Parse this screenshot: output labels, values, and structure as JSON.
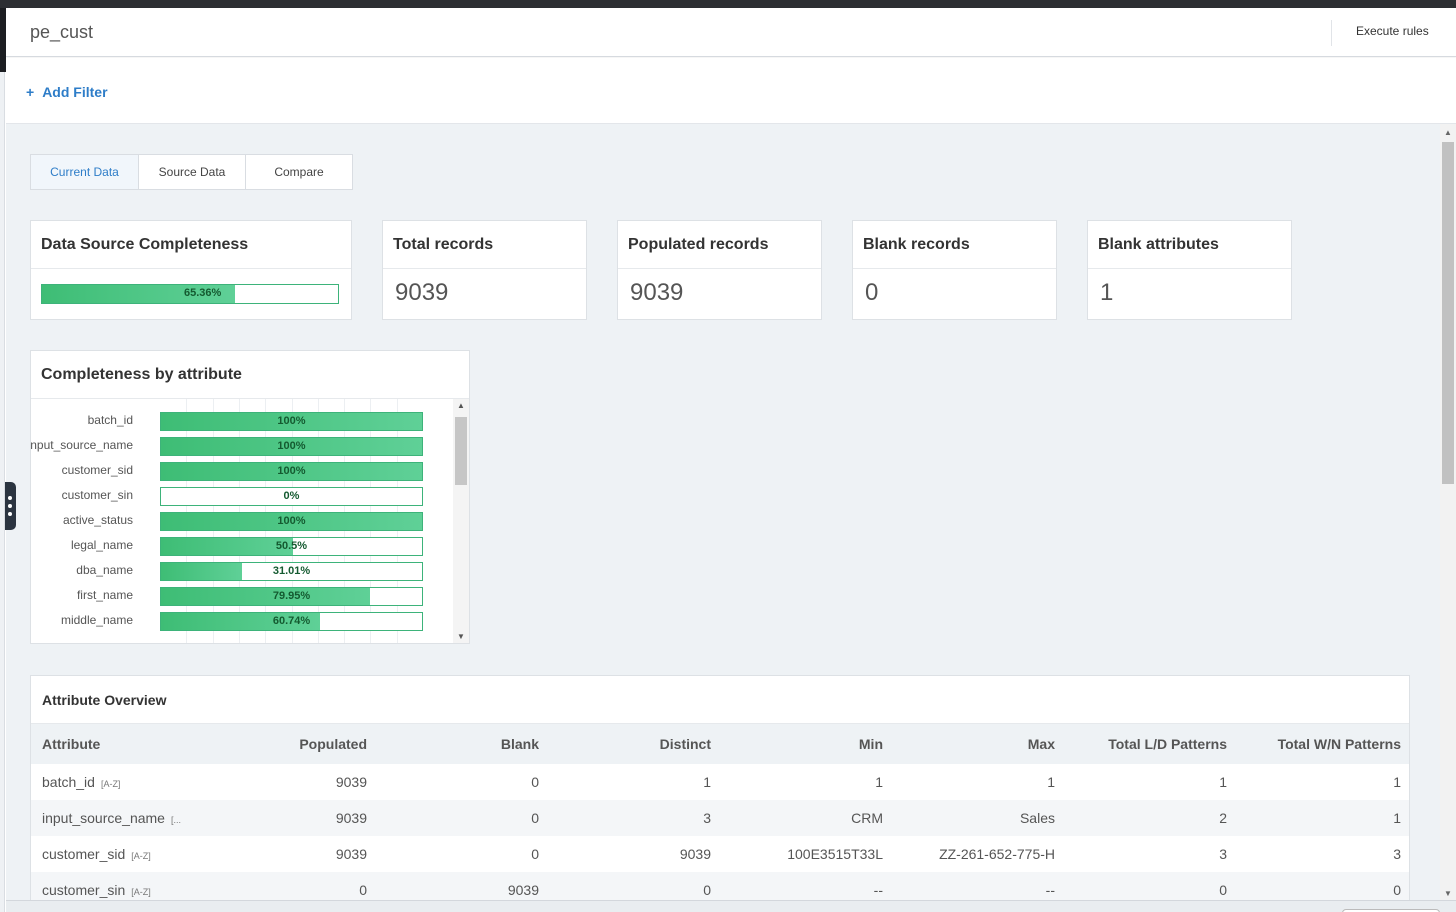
{
  "header": {
    "title": "pe_cust",
    "execute_label": "Execute rules"
  },
  "filter": {
    "add_label": "Add Filter",
    "plus": "+"
  },
  "tabs": [
    {
      "label": "Current Data",
      "active": true
    },
    {
      "label": "Source Data",
      "active": false
    },
    {
      "label": "Compare",
      "active": false
    }
  ],
  "completeness": {
    "title": "Data Source Completeness",
    "value_label": "65.36%",
    "value": 65.36
  },
  "stats": [
    {
      "title": "Total records",
      "value": "9039"
    },
    {
      "title": "Populated records",
      "value": "9039"
    },
    {
      "title": "Blank records",
      "value": "0"
    },
    {
      "title": "Blank attributes",
      "value": "1"
    }
  ],
  "by_attribute": {
    "title": "Completeness by attribute",
    "items": [
      {
        "name": "batch_id",
        "pct_label": "100%",
        "pct": 100
      },
      {
        "name": "input_source_name",
        "pct_label": "100%",
        "pct": 100
      },
      {
        "name": "customer_sid",
        "pct_label": "100%",
        "pct": 100
      },
      {
        "name": "customer_sin",
        "pct_label": "0%",
        "pct": 0
      },
      {
        "name": "active_status",
        "pct_label": "100%",
        "pct": 100
      },
      {
        "name": "legal_name",
        "pct_label": "50.5%",
        "pct": 50.5
      },
      {
        "name": "dba_name",
        "pct_label": "31.01%",
        "pct": 31.01
      },
      {
        "name": "first_name",
        "pct_label": "79.95%",
        "pct": 79.95
      },
      {
        "name": "middle_name",
        "pct_label": "60.74%",
        "pct": 60.74
      }
    ]
  },
  "overview": {
    "title": "Attribute Overview",
    "columns": [
      "Attribute",
      "Populated",
      "Blank",
      "Distinct",
      "Min",
      "Max",
      "Total L/D Patterns",
      "Total W/N Patterns"
    ],
    "rows": [
      {
        "attribute": "batch_id",
        "tag": "[A-Z]",
        "populated": "9039",
        "blank": "0",
        "distinct": "1",
        "min": "1",
        "max": "1",
        "ld": "1",
        "wn": "1"
      },
      {
        "attribute": "input_source_name",
        "tag": "[...",
        "populated": "9039",
        "blank": "0",
        "distinct": "3",
        "min": "CRM",
        "max": "Sales",
        "ld": "2",
        "wn": "1"
      },
      {
        "attribute": "customer_sid",
        "tag": "[A-Z]",
        "populated": "9039",
        "blank": "0",
        "distinct": "9039",
        "min": "100E3515T33L",
        "max": "ZZ-261-652-775-H",
        "ld": "3",
        "wn": "3"
      },
      {
        "attribute": "customer_sin",
        "tag": "[A-Z]",
        "populated": "0",
        "blank": "9039",
        "distinct": "0",
        "min": "--",
        "max": "--",
        "ld": "0",
        "wn": "0"
      }
    ]
  },
  "colors": {
    "accent": "#2e7dc8",
    "bar_green": "#3ebd75",
    "bar_green_light": "#5fd097"
  }
}
